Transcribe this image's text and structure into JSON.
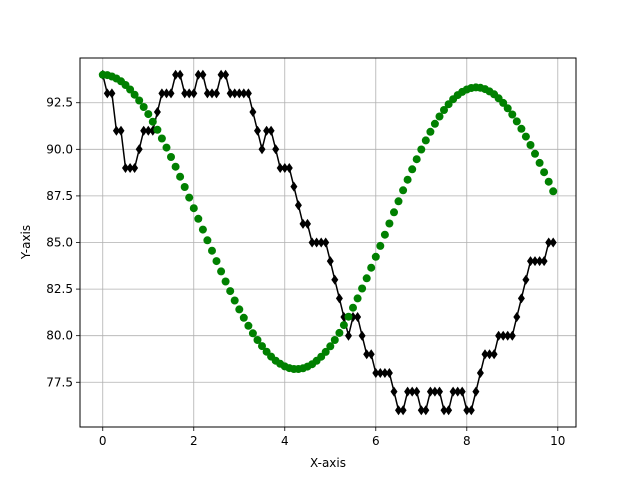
{
  "chart_data": {
    "type": "line",
    "title": "",
    "xlabel": "X-axis",
    "ylabel": "Y-axis",
    "xlim": [
      -0.5,
      10.4
    ],
    "ylim": [
      75.1,
      94.9
    ],
    "xticks": [
      0,
      2,
      4,
      6,
      8,
      10
    ],
    "yticks": [
      77.5,
      80.0,
      82.5,
      85.0,
      87.5,
      90.0,
      92.5
    ],
    "ytick_labels": [
      "77.5",
      "80.0",
      "82.5",
      "85.0",
      "87.5",
      "90.0",
      "92.5"
    ],
    "xtick_labels": [
      "0",
      "2",
      "4",
      "6",
      "8",
      "10"
    ],
    "grid": true,
    "series": [
      {
        "kind": "line-markers",
        "marker": "diamond",
        "color": "#000000",
        "x": [
          0.0,
          0.1,
          0.2,
          0.3,
          0.4,
          0.5,
          0.6,
          0.7,
          0.8,
          0.9,
          1.0,
          1.1,
          1.2,
          1.3,
          1.4,
          1.5,
          1.6,
          1.7,
          1.8,
          1.9,
          2.0,
          2.1,
          2.2,
          2.3,
          2.4,
          2.5,
          2.6,
          2.7,
          2.8,
          2.9,
          3.0,
          3.1,
          3.2,
          3.3,
          3.4,
          3.5,
          3.6,
          3.7,
          3.8,
          3.9,
          4.0,
          4.1,
          4.2,
          4.3,
          4.4,
          4.5,
          4.6,
          4.7,
          4.8,
          4.9,
          5.0,
          5.1,
          5.2,
          5.3,
          5.4,
          5.5,
          5.6,
          5.7,
          5.8,
          5.9,
          6.0,
          6.1,
          6.2,
          6.3,
          6.4,
          6.5,
          6.6,
          6.7,
          6.8,
          6.9,
          7.0,
          7.1,
          7.2,
          7.3,
          7.4,
          7.5,
          7.6,
          7.7,
          7.8,
          7.9,
          8.0,
          8.1,
          8.2,
          8.3,
          8.4,
          8.5,
          8.6,
          8.7,
          8.8,
          8.9,
          9.0,
          9.1,
          9.2,
          9.3,
          9.4,
          9.5,
          9.6,
          9.7,
          9.8,
          9.9
        ],
        "y": [
          94,
          93,
          93,
          91,
          91,
          89,
          89,
          89,
          90,
          91,
          91,
          91,
          92,
          93,
          93,
          93,
          94,
          94,
          93,
          93,
          93,
          94,
          94,
          93,
          93,
          93,
          94,
          94,
          93,
          93,
          93,
          93,
          93,
          92,
          91,
          90,
          91,
          91,
          90,
          89,
          89,
          89,
          88,
          87,
          86,
          86,
          85,
          85,
          85,
          85,
          84,
          83,
          82,
          81,
          80,
          81,
          81,
          80,
          79,
          79,
          78,
          78,
          78,
          78,
          77,
          76,
          76,
          77,
          77,
          77,
          76,
          76,
          77,
          77,
          77,
          76,
          76,
          77,
          77,
          77,
          76,
          76,
          77,
          78,
          79,
          79,
          79,
          80,
          80,
          80,
          80,
          81,
          82,
          83,
          84,
          84,
          84,
          84,
          85,
          85
        ]
      },
      {
        "kind": "scatter",
        "marker": "circle",
        "color": "#008000",
        "x": [
          0.0,
          0.1,
          0.2,
          0.3,
          0.4,
          0.5,
          0.6,
          0.7,
          0.8,
          0.9,
          1.0,
          1.1,
          1.2,
          1.3,
          1.4,
          1.5,
          1.6,
          1.7,
          1.8,
          1.9,
          2.0,
          2.1,
          2.2,
          2.3,
          2.4,
          2.5,
          2.6,
          2.7,
          2.8,
          2.9,
          3.0,
          3.1,
          3.2,
          3.3,
          3.4,
          3.5,
          3.6,
          3.7,
          3.8,
          3.9,
          4.0,
          4.1,
          4.2,
          4.3,
          4.4,
          4.5,
          4.6,
          4.7,
          4.8,
          4.9,
          5.0,
          5.1,
          5.2,
          5.3,
          5.4,
          5.5,
          5.6,
          5.7,
          5.8,
          5.9,
          6.0,
          6.1,
          6.2,
          6.3,
          6.4,
          6.5,
          6.6,
          6.7,
          6.8,
          6.9,
          7.0,
          7.1,
          7.2,
          7.3,
          7.4,
          7.5,
          7.6,
          7.7,
          7.8,
          7.9,
          8.0,
          8.1,
          8.2,
          8.3,
          8.4,
          8.5,
          8.6,
          8.7,
          8.8,
          8.9,
          9.0,
          9.1,
          9.2,
          9.3,
          9.4,
          9.5,
          9.6,
          9.7,
          9.8,
          9.9
        ],
        "y": [
          94.0,
          93.98,
          93.91,
          93.8,
          93.65,
          93.45,
          93.21,
          92.93,
          92.62,
          92.27,
          91.89,
          91.48,
          91.05,
          90.58,
          90.09,
          89.59,
          89.07,
          88.53,
          87.98,
          87.41,
          86.84,
          86.27,
          85.69,
          85.12,
          84.56,
          84.0,
          83.45,
          82.91,
          82.39,
          81.89,
          81.41,
          80.96,
          80.53,
          80.13,
          79.77,
          79.44,
          79.14,
          78.88,
          78.66,
          78.49,
          78.35,
          78.26,
          78.21,
          78.21,
          78.25,
          78.34,
          78.47,
          78.65,
          78.87,
          79.13,
          79.43,
          79.77,
          80.15,
          80.57,
          81.02,
          81.5,
          82.0,
          82.53,
          83.08,
          83.65,
          84.23,
          84.82,
          85.42,
          86.02,
          86.62,
          87.21,
          87.8,
          88.37,
          88.93,
          89.47,
          89.99,
          90.48,
          90.94,
          91.37,
          91.76,
          92.11,
          92.42,
          92.69,
          92.91,
          93.08,
          93.21,
          93.29,
          93.32,
          93.3,
          93.23,
          93.11,
          92.95,
          92.74,
          92.49,
          92.2,
          91.87,
          91.5,
          91.1,
          90.68,
          90.23,
          89.76,
          89.27,
          88.77,
          88.26,
          87.75
        ]
      }
    ]
  }
}
